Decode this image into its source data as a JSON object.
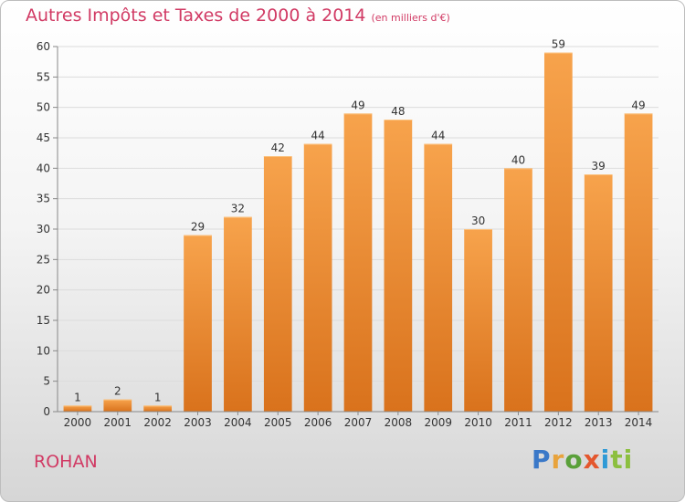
{
  "chart_data": {
    "type": "bar",
    "title": "Autres Impôts et Taxes de 2000 à 2014",
    "unit_note": "(en milliers d'€)",
    "categories": [
      "2000",
      "2001",
      "2002",
      "2003",
      "2004",
      "2005",
      "2006",
      "2007",
      "2008",
      "2009",
      "2010",
      "2011",
      "2012",
      "2013",
      "2014"
    ],
    "values": [
      1,
      2,
      1,
      29,
      32,
      42,
      44,
      49,
      48,
      44,
      30,
      40,
      59,
      39,
      49
    ],
    "ylim": [
      0,
      60
    ],
    "yticks": [
      0,
      5,
      10,
      15,
      20,
      25,
      30,
      35,
      40,
      45,
      50,
      55,
      60
    ],
    "grid": true,
    "bar_color_top": "#f7a34c",
    "bar_color_bottom": "#d9721c",
    "title_color": "#d13a64"
  },
  "footer": {
    "commune": "ROHAN",
    "brand_letters": [
      "P",
      "r",
      "o",
      "x",
      "i",
      "ti"
    ]
  }
}
